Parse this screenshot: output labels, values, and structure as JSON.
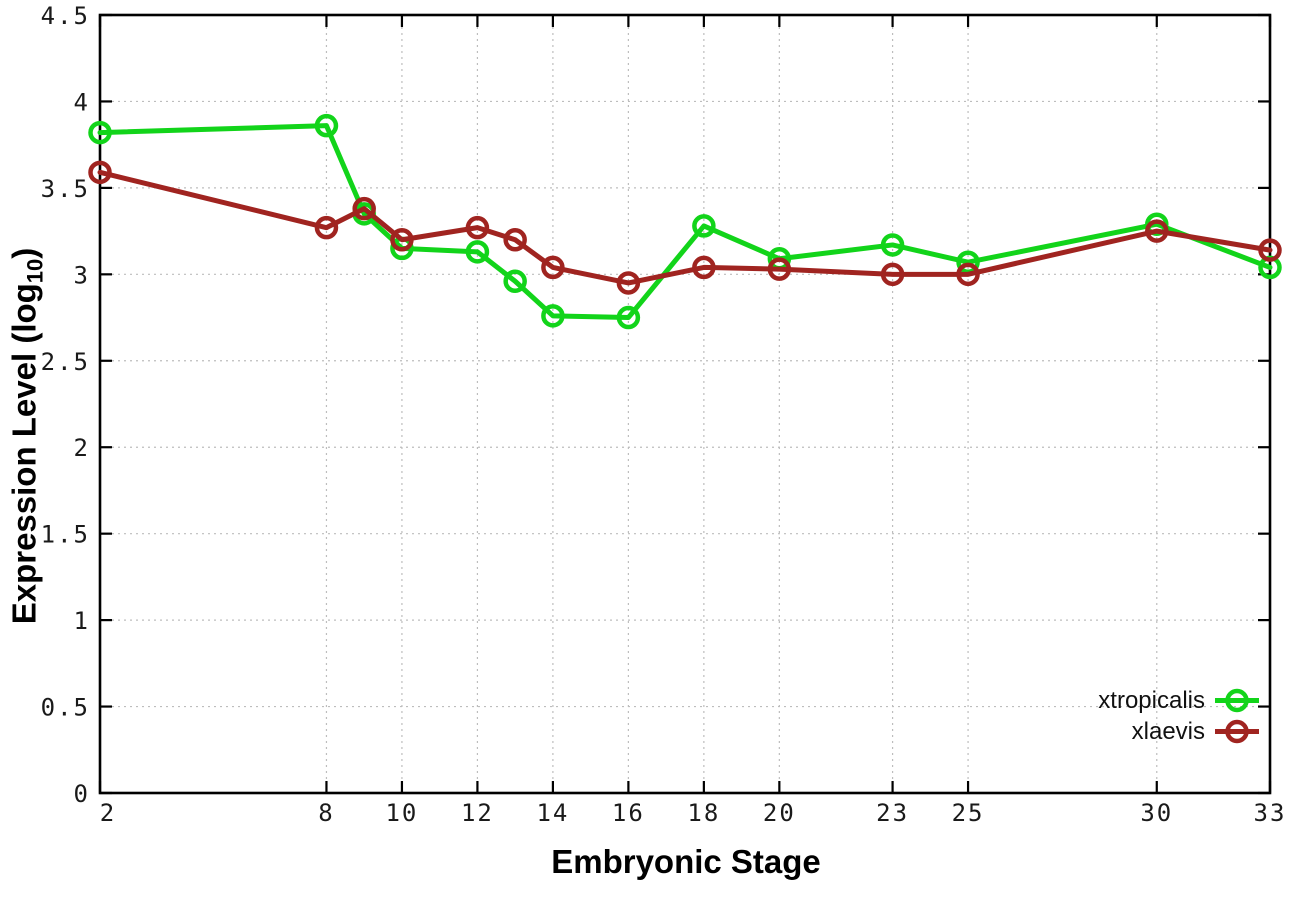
{
  "chart_data": {
    "type": "line",
    "title": "",
    "xlabel": "Embryonic Stage",
    "ylabel": "Expression Level (log10)",
    "ylabel_parts": {
      "main": "Expression Level (log",
      "sub": "10",
      "end": ")"
    },
    "xlim": [
      2,
      33
    ],
    "ylim": [
      0,
      4.5
    ],
    "x_ticks": [
      2,
      8,
      10,
      12,
      14,
      16,
      18,
      20,
      23,
      25,
      30,
      33
    ],
    "y_ticks": [
      0,
      0.5,
      1,
      1.5,
      2,
      2.5,
      3,
      3.5,
      4,
      4.5
    ],
    "grid": true,
    "legend_position": "bottom-right",
    "x": [
      2,
      8,
      9,
      10,
      12,
      13,
      14,
      16,
      18,
      20,
      23,
      25,
      30,
      33
    ],
    "series": [
      {
        "name": "xtropicalis",
        "color": "#12d41a",
        "values": [
          3.82,
          3.86,
          3.35,
          3.15,
          3.13,
          2.96,
          2.76,
          2.75,
          3.28,
          3.09,
          3.17,
          3.07,
          3.29,
          3.04
        ]
      },
      {
        "name": "xlaevis",
        "color": "#a02420",
        "values": [
          3.59,
          3.27,
          3.38,
          3.2,
          3.27,
          3.2,
          3.04,
          2.95,
          3.04,
          3.03,
          3.0,
          3.0,
          3.25,
          3.14
        ]
      }
    ],
    "colors": {
      "background": "#ffffff",
      "axis": "#000000",
      "grid": "#bdbdbd"
    }
  }
}
